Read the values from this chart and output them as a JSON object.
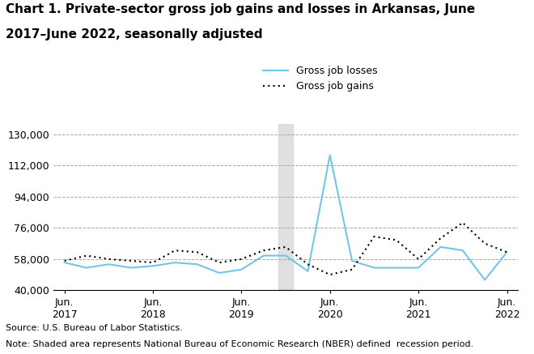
{
  "title_line1": "Chart 1. Private-sector gross job gains and losses in Arkansas, June",
  "title_line2": "2017–June 2022, seasonally adjusted",
  "title_fontsize": 11,
  "source_text": "Source: U.S. Bureau of Labor Statistics.",
  "note_text": "Note: Shaded area represents National Bureau of Economic Research (NBER) defined  recession period.",
  "ylim": [
    40000,
    136000
  ],
  "yticks": [
    40000,
    58000,
    76000,
    94000,
    112000,
    130000
  ],
  "ytick_labels": [
    "40,000",
    "58,000",
    "76,000",
    "94,000",
    "112,000",
    "130,000"
  ],
  "recession_start": 9.67,
  "recession_end": 10.33,
  "losses_color": "#73C6E7",
  "gains_color": "#000000",
  "background_color": "#ffffff",
  "grid_color": "#aaaaaa",
  "xtick_positions": [
    0,
    4,
    8,
    12,
    16,
    20
  ],
  "xtick_labels": [
    "Jun.\n2017",
    "Jun.\n2018",
    "Jun.\n2019",
    "Jun.\n2020",
    "Jun.\n2021",
    "Jun.\n2022"
  ],
  "gross_job_losses": [
    56000,
    53000,
    55000,
    53000,
    54000,
    56000,
    55000,
    50000,
    52000,
    60000,
    60000,
    51000,
    118000,
    57000,
    53000,
    53000,
    53000,
    65000,
    63000,
    46000,
    62000
  ],
  "gross_job_gains": [
    57000,
    60000,
    58000,
    57000,
    56000,
    63000,
    62000,
    56000,
    58000,
    63000,
    65000,
    55000,
    49000,
    52000,
    71000,
    69000,
    58000,
    70000,
    79000,
    67000,
    62000
  ]
}
